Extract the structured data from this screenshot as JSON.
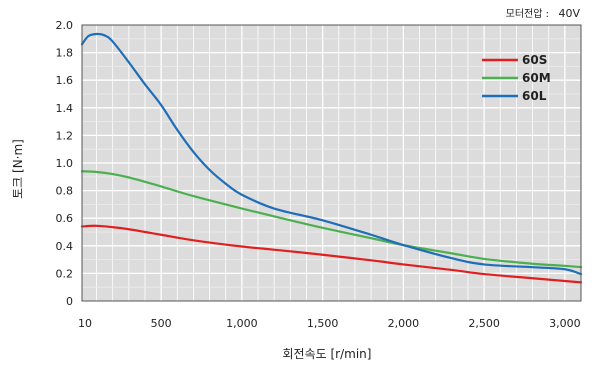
{
  "chart_data": {
    "type": "line",
    "title": "",
    "xlabel": "회전속도 [r/min]",
    "ylabel": "토크 [N·m]",
    "voltage_label": "모터전압 :",
    "voltage_value": "40V",
    "xlim": [
      10,
      3100
    ],
    "ylim": [
      0,
      2.0
    ],
    "x_ticks": [
      10,
      500,
      1000,
      1500,
      2000,
      2500,
      3000
    ],
    "x_tick_labels": [
      "10",
      "500",
      "1,000",
      "1,500",
      "2,000",
      "2,500",
      "3,000"
    ],
    "y_ticks": [
      0,
      0.2,
      0.4,
      0.6,
      0.8,
      1.0,
      1.2,
      1.4,
      1.6,
      1.8,
      2.0
    ],
    "y_tick_labels": [
      "0",
      "0.2",
      "0.4",
      "0.6",
      "0.8",
      "1.0",
      "1.2",
      "1.4",
      "1.6",
      "1.8",
      "2.0"
    ],
    "grid": true,
    "legend_position": "top-right",
    "series": [
      {
        "name": "60S",
        "color": "#e02020",
        "x": [
          10,
          100,
          200,
          300,
          500,
          700,
          1000,
          1300,
          1500,
          1800,
          2000,
          2300,
          2500,
          2800,
          3000,
          3100
        ],
        "y": [
          0.54,
          0.545,
          0.535,
          0.52,
          0.48,
          0.44,
          0.395,
          0.36,
          0.335,
          0.295,
          0.265,
          0.225,
          0.195,
          0.165,
          0.145,
          0.135
        ]
      },
      {
        "name": "60M",
        "color": "#4caf50",
        "x": [
          10,
          100,
          200,
          300,
          500,
          700,
          1000,
          1300,
          1500,
          1800,
          2000,
          2300,
          2500,
          2800,
          3000,
          3100
        ],
        "y": [
          0.94,
          0.935,
          0.92,
          0.895,
          0.83,
          0.76,
          0.67,
          0.585,
          0.53,
          0.455,
          0.405,
          0.345,
          0.305,
          0.27,
          0.255,
          0.245
        ]
      },
      {
        "name": "60L",
        "color": "#1f6eb8",
        "x": [
          10,
          50,
          100,
          150,
          200,
          300,
          400,
          500,
          600,
          700,
          800,
          900,
          1000,
          1200,
          1500,
          1800,
          2000,
          2300,
          2500,
          2800,
          3000,
          3100
        ],
        "y": [
          1.86,
          1.92,
          1.935,
          1.925,
          1.88,
          1.73,
          1.57,
          1.42,
          1.24,
          1.08,
          0.95,
          0.85,
          0.77,
          0.67,
          0.585,
          0.48,
          0.405,
          0.31,
          0.265,
          0.245,
          0.23,
          0.195
        ]
      }
    ]
  }
}
